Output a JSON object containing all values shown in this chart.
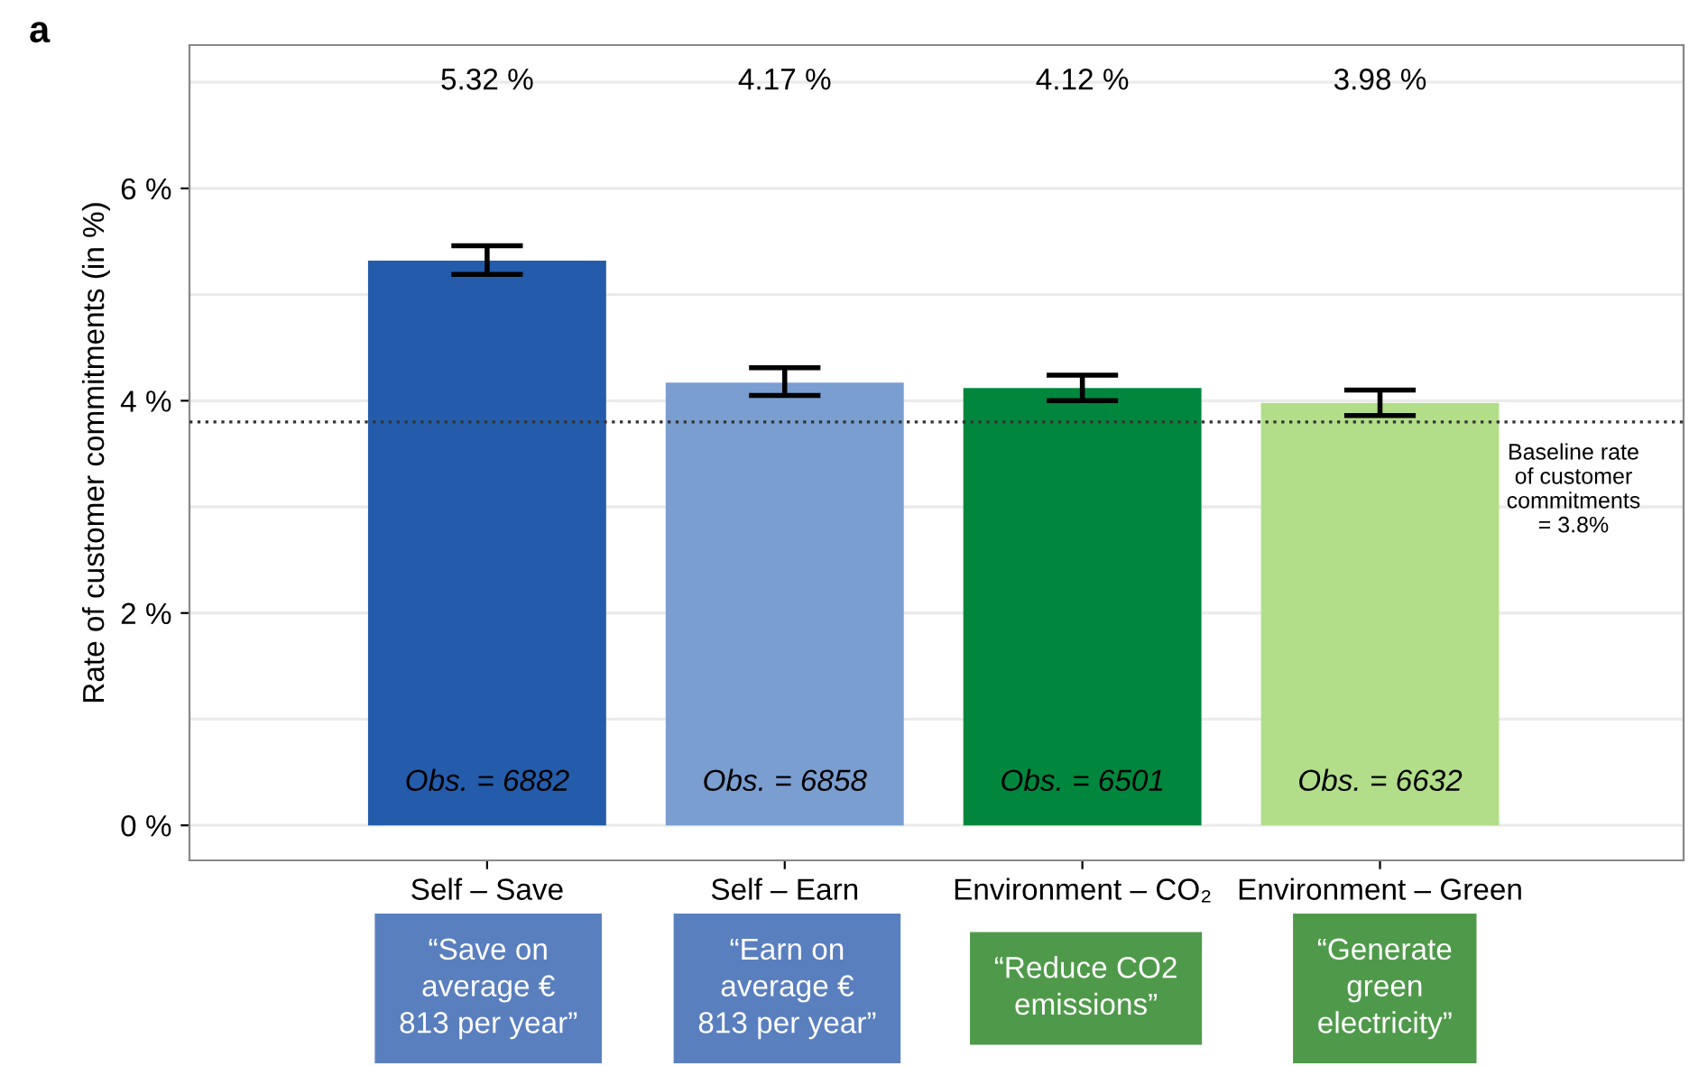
{
  "chart_data": {
    "type": "bar",
    "title": "a",
    "ylabel": "Rate of customer commitments (in %)",
    "categories": [
      "Self – Save",
      "Self – Earn",
      "Environment – CO₂",
      "Environment – Green"
    ],
    "values": [
      5.32,
      4.17,
      4.12,
      3.98
    ],
    "colors": [
      "#245cab",
      "#7a9ed0",
      "#00873d",
      "#b2de8a"
    ],
    "errors": [
      [
        5.19,
        5.46
      ],
      [
        4.05,
        4.31
      ],
      [
        4.0,
        4.24
      ],
      [
        3.86,
        4.1
      ]
    ],
    "ylim": [
      -0.33,
      7.35
    ],
    "yticks": [
      {
        "value": 0,
        "label": "0 %"
      },
      {
        "value": 1,
        "label": null
      },
      {
        "value": 2,
        "label": "2 %"
      },
      {
        "value": 3,
        "label": null
      },
      {
        "value": 4,
        "label": "4 %"
      },
      {
        "value": 5,
        "label": null
      },
      {
        "value": 6,
        "label": "6 %"
      },
      {
        "value": 7,
        "label": null
      }
    ],
    "grid": "y",
    "ref_lines": [
      {
        "axis": "y",
        "value": 3.8,
        "label": "Baseline rate\nof customer\ncommitments\n= 3.8%",
        "line_style": "dotted",
        "color": "#333333"
      }
    ],
    "annotations": [
      "5.32 %",
      "4.17 %",
      "4.12 %",
      "3.98 %",
      "Obs. = 6882",
      "Obs. = 6858",
      "Obs. = 6501",
      "Obs. = 6632",
      "“Save on\naverage €\n813 per year”",
      "“Earn on\naverage €\n813 per year”",
      "“Reduce CO2\nemissions”",
      "“Generate\ngreen\nelectricity”"
    ]
  }
}
